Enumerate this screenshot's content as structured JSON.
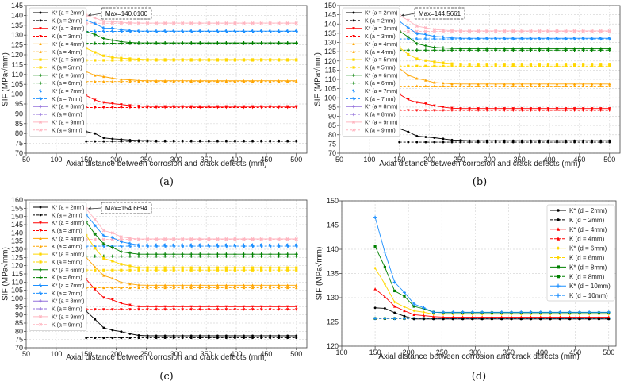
{
  "colors": {
    "a2": "#000000",
    "a3": "#ff0000",
    "a4": "#ffa500",
    "a5": "#ffd700",
    "a6": "#008000",
    "a7": "#1e90ff",
    "a8": "#9370db",
    "a9": "#ffb6c1"
  },
  "chart_data": [
    {
      "type": "line",
      "caption": "(a)",
      "xlabel": "Axial distance between corrosion and crack defects (mm)",
      "ylabel": "SIF (MPa√mm)",
      "xlim": [
        50,
        517.5
      ],
      "ylim": [
        70,
        145
      ],
      "xticks": [
        50,
        100,
        150,
        200,
        250,
        300,
        350,
        400,
        450,
        500
      ],
      "yticks": [
        70,
        75,
        80,
        85,
        90,
        95,
        100,
        105,
        110,
        115,
        120,
        125,
        130,
        135,
        140,
        145
      ],
      "grid": true,
      "legend_position": "top-left",
      "annotation": "Max=140.0100",
      "annotation_point": [
        150,
        140.01
      ],
      "x": [
        150,
        164.6,
        179.2,
        193.8,
        208.3,
        222.9,
        237.5,
        252.1,
        266.7,
        281.3,
        295.8,
        310.4,
        325,
        339.6,
        354.2,
        368.8,
        383.3,
        397.9,
        412.5,
        427.1,
        441.7,
        456.3,
        470.8,
        485.4,
        500
      ],
      "series": [
        {
          "name": "K* (a = 2mm)",
          "color": "a2",
          "marker": "circle",
          "dash": false,
          "head": [
            81,
            80,
            77.8,
            77.3,
            77,
            76.7,
            76.5,
            76.4
          ],
          "plateau": 76.3
        },
        {
          "name": "K (a = 2mm)",
          "color": "a2",
          "marker": "circle",
          "dash": true,
          "head": [],
          "plateau": 76
        },
        {
          "name": "K* (a = 3mm)",
          "color": "a3",
          "marker": "tri-down",
          "dash": false,
          "head": [
            99.3,
            97,
            95.7,
            95.2,
            94.7,
            94.2,
            93.9
          ],
          "plateau": 93.7
        },
        {
          "name": "K (a = 3mm)",
          "color": "a3",
          "marker": "tri-down",
          "dash": true,
          "head": [],
          "plateau": 93.2
        },
        {
          "name": "K* (a = 4mm)",
          "color": "a4",
          "marker": "tri-up",
          "dash": false,
          "head": [
            111.5,
            109.5,
            108.9,
            108.1,
            107.5,
            107.3,
            106.9
          ],
          "plateau": 106.8
        },
        {
          "name": "K (a = 4mm)",
          "color": "a4",
          "marker": "tri-up",
          "dash": true,
          "head": [],
          "plateau": 106.4
        },
        {
          "name": "K* (a = 5mm)",
          "color": "a5",
          "marker": "square",
          "dash": false,
          "head": [
            123.3,
            121.2,
            119.5,
            118.6,
            118.3,
            118,
            117.8
          ],
          "plateau": 117.6
        },
        {
          "name": "K (a = 5mm)",
          "color": "a5",
          "marker": "square",
          "dash": true,
          "head": [],
          "plateau": 117.2
        },
        {
          "name": "K* (a = 6mm)",
          "color": "a6",
          "marker": "plus",
          "dash": false,
          "head": [
            131.8,
            130.3,
            128.3,
            127.4,
            126.6,
            126.2,
            126
          ],
          "plateau": 126
        },
        {
          "name": "K (a = 6mm)",
          "color": "a6",
          "marker": "plus",
          "dash": true,
          "head": [],
          "plateau": 125.8
        },
        {
          "name": "K* (a = 7mm)",
          "color": "a7",
          "marker": "star",
          "dash": false,
          "head": [
            137.6,
            135.8,
            133.6,
            133.5,
            132.7,
            132.3
          ],
          "plateau": 132
        },
        {
          "name": "K (a = 7mm)",
          "color": "a7",
          "marker": "star",
          "dash": true,
          "head": [],
          "plateau": 131.9
        },
        {
          "name": "K* (a = 8mm)",
          "color": "a8",
          "marker": "plus",
          "dash": false,
          "head": [],
          "plateau": null
        },
        {
          "name": "K (a = 8mm)",
          "color": "a8",
          "marker": "plus",
          "dash": true,
          "head": [],
          "plateau": null
        },
        {
          "name": "K* (a = 9mm)",
          "color": "a9",
          "marker": "x",
          "dash": false,
          "head": [
            140.01,
            138.7,
            137,
            136.8,
            136.5,
            136.2
          ],
          "plateau": 136.1
        },
        {
          "name": "K (a = 9mm)",
          "color": "a9",
          "marker": "x",
          "dash": true,
          "head": [],
          "plateau": 136
        }
      ]
    },
    {
      "type": "line",
      "caption": "(b)",
      "xlabel": "Axial distance between corrosion and crack defects (mm)",
      "ylabel": "SIF (MPa√mm)",
      "xlim": [
        50,
        517.5
      ],
      "ylim": [
        70,
        150
      ],
      "xticks": [
        50,
        100,
        150,
        200,
        250,
        300,
        350,
        400,
        450,
        500
      ],
      "yticks": [
        70,
        75,
        80,
        85,
        90,
        95,
        100,
        105,
        110,
        115,
        120,
        125,
        130,
        135,
        140,
        145,
        150
      ],
      "grid": true,
      "legend_position": "top-left",
      "annotation": "Max=144.5661",
      "annotation_point": [
        150,
        144.57
      ],
      "x": [
        150,
        164.6,
        179.2,
        193.8,
        208.3,
        222.9,
        237.5,
        252.1,
        266.7,
        281.3,
        295.8,
        310.4,
        325,
        339.6,
        354.2,
        368.8,
        383.3,
        397.9,
        412.5,
        427.1,
        441.7,
        456.3,
        470.8,
        485.4,
        500
      ],
      "series": [
        {
          "name": "K* (a = 2mm)",
          "color": "a2",
          "marker": "circle",
          "dash": false,
          "head": [
            83.3,
            81.6,
            79.3,
            78.8,
            78.4,
            77.8,
            77.2,
            77
          ],
          "plateau": 76.8
        },
        {
          "name": "K (a = 2mm)",
          "color": "a2",
          "marker": "circle",
          "dash": true,
          "head": [],
          "plateau": 76
        },
        {
          "name": "K* (a = 3mm)",
          "color": "a3",
          "marker": "tri-down",
          "dash": false,
          "head": [
            102,
            99,
            97.5,
            96.8,
            95.7,
            95,
            94.4
          ],
          "plateau": 94.2
        },
        {
          "name": "K (a = 3mm)",
          "color": "a3",
          "marker": "tri-down",
          "dash": true,
          "head": [],
          "plateau": 93.2
        },
        {
          "name": "K* (a = 4mm)",
          "color": "a4",
          "marker": "tri-up",
          "dash": false,
          "head": [
            116,
            112.3,
            110.5,
            109.5,
            108.3,
            108,
            107.6
          ],
          "plateau": 107.5
        },
        {
          "name": "K (a = 4mm)",
          "color": "a4",
          "marker": "tri-up",
          "dash": true,
          "head": [],
          "plateau": 106.4
        },
        {
          "name": "K* (a = 5mm)",
          "color": "a5",
          "marker": "square",
          "dash": false,
          "head": [
            127.3,
            123.5,
            121.2,
            120.2,
            119.5,
            119,
            118.5
          ],
          "plateau": 118.3
        },
        {
          "name": "K (a = 5mm)",
          "color": "a5",
          "marker": "square",
          "dash": true,
          "head": [],
          "plateau": 117.2
        },
        {
          "name": "K* (a = 6mm)",
          "color": "a6",
          "marker": "plus",
          "dash": false,
          "head": [
            136.2,
            133,
            129.3,
            128.2,
            127.3,
            127,
            126.7
          ],
          "plateau": 126.5
        },
        {
          "name": "K (a = 6mm)",
          "color": "a6",
          "marker": "plus",
          "dash": true,
          "head": [],
          "plateau": 125.8
        },
        {
          "name": "K* (a = 7mm)",
          "color": "a7",
          "marker": "star",
          "dash": false,
          "head": [
            141.5,
            138,
            134.8,
            134.3,
            133.3,
            133,
            132.5
          ],
          "plateau": 132.3
        },
        {
          "name": "K (a = 7mm)",
          "color": "a7",
          "marker": "star",
          "dash": true,
          "head": [],
          "plateau": 131.9
        },
        {
          "name": "K* (a = 8mm)",
          "color": "a8",
          "marker": "plus",
          "dash": false,
          "head": [],
          "plateau": null
        },
        {
          "name": "K (a = 8mm)",
          "color": "a8",
          "marker": "plus",
          "dash": true,
          "head": [],
          "plateau": null
        },
        {
          "name": "K* (a = 9mm)",
          "color": "a9",
          "marker": "x",
          "dash": false,
          "head": [
            144.57,
            142,
            138.8,
            138,
            137,
            136.7,
            136.4
          ],
          "plateau": 136.3
        },
        {
          "name": "K (a = 9mm)",
          "color": "a9",
          "marker": "x",
          "dash": true,
          "head": [],
          "plateau": 136
        }
      ]
    },
    {
      "type": "line",
      "caption": "(c)",
      "xlabel": "Axial distance between corrosion and crack defects (mm)",
      "ylabel": "SIF (MPa√mm)",
      "xlim": [
        50,
        517.5
      ],
      "ylim": [
        70,
        160
      ],
      "xticks": [
        50,
        100,
        150,
        200,
        250,
        300,
        350,
        400,
        450,
        500
      ],
      "yticks": [
        70,
        75,
        80,
        85,
        90,
        95,
        100,
        105,
        110,
        115,
        120,
        125,
        130,
        135,
        140,
        145,
        150,
        155,
        160
      ],
      "grid": true,
      "legend_position": "top-left",
      "annotation": "Max=154.6694",
      "annotation_point": [
        150,
        154.67
      ],
      "x": [
        150,
        164.6,
        179.2,
        193.8,
        208.3,
        222.9,
        237.5,
        252.1,
        266.7,
        281.3,
        295.8,
        310.4,
        325,
        339.6,
        354.2,
        368.8,
        383.3,
        397.9,
        412.5,
        427.1,
        441.7,
        456.3,
        470.8,
        485.4,
        500
      ],
      "series": [
        {
          "name": "K* (a = 2mm)",
          "color": "a2",
          "marker": "circle",
          "dash": false,
          "head": [
            92.3,
            87.3,
            82.1,
            80.7,
            79.8,
            78.5,
            77.5
          ],
          "plateau": 77.3
        },
        {
          "name": "K (a = 2mm)",
          "color": "a2",
          "marker": "circle",
          "dash": true,
          "head": [],
          "plateau": 76
        },
        {
          "name": "K* (a = 3mm)",
          "color": "a3",
          "marker": "tri-down",
          "dash": false,
          "head": [
            111.7,
            105.5,
            100.5,
            99.2,
            97,
            96,
            95
          ],
          "plateau": 95
        },
        {
          "name": "K (a = 3mm)",
          "color": "a3",
          "marker": "tri-down",
          "dash": true,
          "head": [],
          "plateau": 93.3
        },
        {
          "name": "K* (a = 4mm)",
          "color": "a4",
          "marker": "tri-up",
          "dash": false,
          "head": [
            125,
            119.2,
            114,
            112.3,
            109.8,
            108.9,
            108.2
          ],
          "plateau": 108.1
        },
        {
          "name": "K (a = 4mm)",
          "color": "a4",
          "marker": "tri-up",
          "dash": true,
          "head": [],
          "plateau": 106.5
        },
        {
          "name": "K* (a = 5mm)",
          "color": "a5",
          "marker": "square",
          "dash": false,
          "head": [
            138.5,
            130.6,
            124.5,
            122.8,
            120.9,
            119.8,
            118.8
          ],
          "plateau": 118.8
        },
        {
          "name": "K (a = 5mm)",
          "color": "a5",
          "marker": "square",
          "dash": true,
          "head": [],
          "plateau": 117.3
        },
        {
          "name": "K* (a = 6mm)",
          "color": "a6",
          "marker": "plus",
          "dash": false,
          "head": [
            146.6,
            139.3,
            133.3,
            131.1,
            128.5,
            127.7,
            127
          ],
          "plateau": 127
        },
        {
          "name": "K (a = 6mm)",
          "color": "a6",
          "marker": "plus",
          "dash": true,
          "head": [],
          "plateau": 125.8
        },
        {
          "name": "K* (a = 7mm)",
          "color": "a7",
          "marker": "star",
          "dash": false,
          "head": [
            151.2,
            144.5,
            138.3,
            137.1,
            134.6,
            133.5,
            132.6
          ],
          "plateau": 132.6
        },
        {
          "name": "K (a = 7mm)",
          "color": "a7",
          "marker": "star",
          "dash": true,
          "head": [],
          "plateau": 131.9
        },
        {
          "name": "K* (a = 8mm)",
          "color": "a8",
          "marker": "plus",
          "dash": false,
          "head": [],
          "plateau": null
        },
        {
          "name": "K (a = 8mm)",
          "color": "a8",
          "marker": "plus",
          "dash": true,
          "head": [],
          "plateau": null
        },
        {
          "name": "K* (a = 9mm)",
          "color": "a9",
          "marker": "x",
          "dash": false,
          "head": [
            154.67,
            148.2,
            141.4,
            140,
            137.6,
            136.8,
            136.2
          ],
          "plateau": 136.3
        },
        {
          "name": "K (a = 9mm)",
          "color": "a9",
          "marker": "x",
          "dash": true,
          "head": [],
          "plateau": 136
        }
      ]
    },
    {
      "type": "line",
      "caption": "(d)",
      "xlabel": "Axial distance between corrosion and crack defects (mm)",
      "ylabel": "SIF (MPa√mm)",
      "xlim": [
        100,
        511
      ],
      "ylim": [
        120,
        150
      ],
      "xticks": [
        100,
        150,
        200,
        250,
        300,
        350,
        400,
        450,
        500
      ],
      "yticks": [
        120,
        125,
        130,
        135,
        140,
        145,
        150
      ],
      "grid": true,
      "legend_position": "top-right",
      "x": [
        150,
        164.6,
        179.2,
        193.8,
        208.3,
        222.9,
        237.5,
        252.1,
        266.7,
        281.3,
        295.8,
        310.4,
        325,
        339.6,
        354.2,
        368.8,
        383.3,
        397.9,
        412.5,
        427.1,
        441.7,
        456.3,
        470.8,
        485.4,
        500
      ],
      "series": [
        {
          "name": "K* (d = 2mm)",
          "color": "a2",
          "marker": "circle",
          "dash": false,
          "head": [
            127.9,
            127.8,
            126.9,
            126.2,
            125.6,
            125.6
          ],
          "plateau": 125.6
        },
        {
          "name": "K (d = 2mm)",
          "color": "a2",
          "marker": "circle",
          "dash": true,
          "head": [],
          "plateau": 125.7
        },
        {
          "name": "K* (d = 4mm)",
          "color": "a3",
          "marker": "tri-up",
          "dash": false,
          "head": [
            131.8,
            130.2,
            128.2,
            127.3,
            126.5,
            126.3,
            126.1
          ],
          "plateau": 126
        },
        {
          "name": "K (d = 4mm)",
          "color": "a3",
          "marker": "tri-up",
          "dash": true,
          "head": [],
          "plateau": 125.7
        },
        {
          "name": "K* (d = 6mm)",
          "color": "a5",
          "marker": "diamond",
          "dash": false,
          "head": [
            136.1,
            132.8,
            129.1,
            128.1,
            127.3,
            127,
            126.6
          ],
          "plateau": 126.6
        },
        {
          "name": "K (d = 6mm)",
          "color": "a5",
          "marker": "diamond",
          "dash": true,
          "head": [],
          "plateau": 125.8
        },
        {
          "name": "K* (d = 8mm)",
          "color": "a6",
          "marker": "square",
          "dash": false,
          "head": [
            140.6,
            136.3,
            131.4,
            130.3,
            128.2,
            127.7,
            127
          ],
          "plateau": 126.9
        },
        {
          "name": "K (d = 8mm)",
          "color": "a6",
          "marker": "square",
          "dash": true,
          "head": [],
          "plateau": 125.7
        },
        {
          "name": "K* (d = 10mm)",
          "color": "a7",
          "marker": "plus",
          "dash": false,
          "head": [
            146.6,
            139.4,
            133.2,
            131.1,
            128.7,
            127.9,
            127
          ],
          "plateau": 127
        },
        {
          "name": "K (d = 10mm)",
          "color": "a7",
          "marker": "plus",
          "dash": true,
          "head": [],
          "plateau": 125.7
        }
      ]
    }
  ]
}
